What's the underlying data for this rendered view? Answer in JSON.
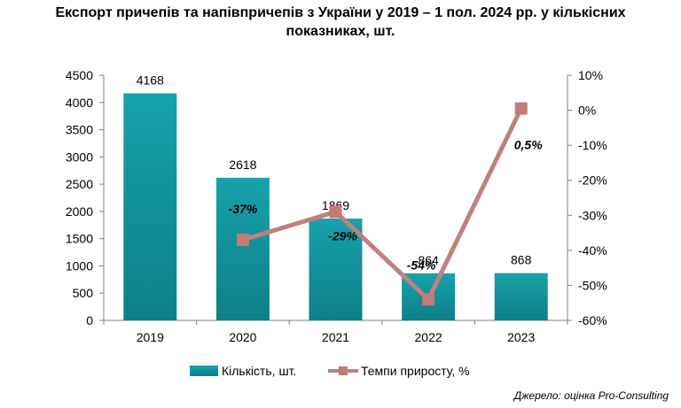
{
  "title_lines": [
    "Експорт причепів та напівпричепів з України у 2019 – 1 пол. 2024 рр. у кількісних",
    "показниках, шт."
  ],
  "source": "Джерело: оцінка Pro-Consulting",
  "colors": {
    "bar": "#17a2ac",
    "bar_dark": "#0d7f88",
    "line": "#c0807c",
    "marker": "#c47a76",
    "axis": "#808080"
  },
  "chart_data": {
    "type": "bar+line",
    "categories": [
      "2019",
      "2020",
      "2021",
      "2022",
      "2023"
    ],
    "series": [
      {
        "name": "Кількість, шт.",
        "type": "bar",
        "axis": "left",
        "values": [
          4168,
          2618,
          1869,
          864,
          868
        ],
        "labels": [
          "4168",
          "2618",
          "1869",
          "864",
          "868"
        ]
      },
      {
        "name": "Темпи приросту, %",
        "type": "line",
        "axis": "right",
        "values": [
          null,
          -37,
          -29,
          -54,
          0.5
        ],
        "labels": [
          "",
          "-37%",
          "-29%",
          "-54%",
          "0,5%"
        ]
      }
    ],
    "y_left": {
      "min": 0,
      "max": 4500,
      "step": 500,
      "ticks": [
        "0",
        "500",
        "1000",
        "1500",
        "2000",
        "2500",
        "3000",
        "3500",
        "4000",
        "4500"
      ]
    },
    "y_right": {
      "min": -60,
      "max": 10,
      "step": 10,
      "ticks": [
        "-60%",
        "-50%",
        "-40%",
        "-30%",
        "-20%",
        "-10%",
        "0%",
        "10%"
      ]
    },
    "legend_position": "bottom",
    "grid": false
  }
}
